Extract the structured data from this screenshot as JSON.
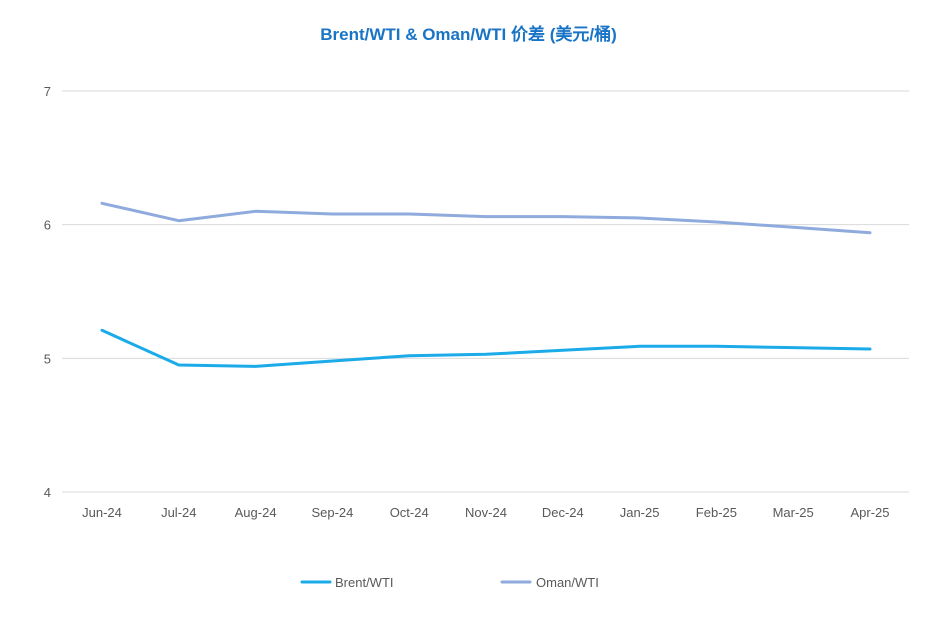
{
  "chart_data": {
    "type": "line",
    "title": "Brent/WTI & Oman/WTI 价差 (美元/桶)",
    "xlabel": "",
    "ylabel": "",
    "categories": [
      "Jun-24",
      "Jul-24",
      "Aug-24",
      "Sep-24",
      "Oct-24",
      "Nov-24",
      "Dec-24",
      "Jan-25",
      "Feb-25",
      "Mar-25",
      "Apr-25"
    ],
    "ylim": [
      4,
      7
    ],
    "yticks": [
      4,
      5,
      6,
      7
    ],
    "grid": true,
    "legend_position": "bottom",
    "series": [
      {
        "name": "Brent/WTI",
        "color": "#1aabe8",
        "values": [
          5.21,
          4.95,
          4.94,
          4.98,
          5.02,
          5.03,
          5.06,
          5.09,
          5.09,
          5.08,
          5.07
        ]
      },
      {
        "name": "Oman/WTI",
        "color": "#8faadc",
        "values": [
          6.16,
          6.03,
          6.1,
          6.08,
          6.08,
          6.06,
          6.06,
          6.05,
          6.02,
          5.98,
          5.94
        ]
      }
    ]
  }
}
